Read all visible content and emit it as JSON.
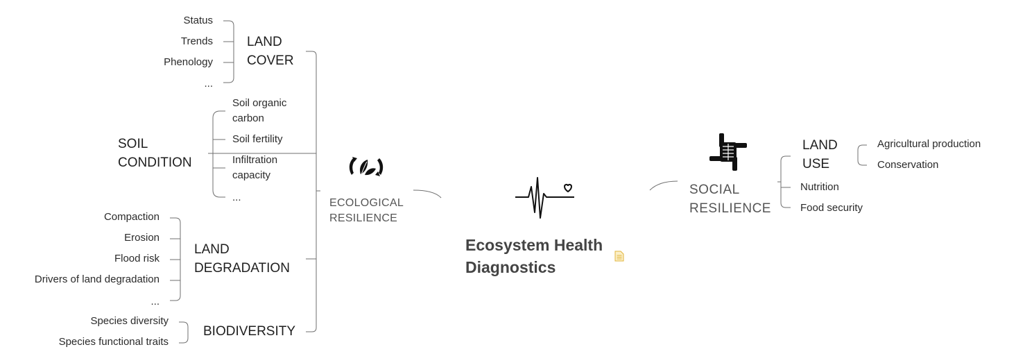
{
  "map": {
    "central": {
      "line1": "Ecosystem Health",
      "line2": "Diagnostics",
      "note_icon": "note-document-icon",
      "note_icon_color": "#e2b53c"
    },
    "ecological": {
      "line1": "ECOLOGICAL",
      "line2": "RESILIENCE",
      "icon": "leaf-recycle-icon",
      "land_cover": {
        "line1": "LAND",
        "line2": "COVER",
        "items": [
          "Status",
          "Trends",
          "Phenology",
          "..."
        ]
      },
      "soil": {
        "line1": "SOIL",
        "line2": "CONDITION",
        "items": {
          "soc1": "Soil organic",
          "soc2": "carbon",
          "fertility": "Soil fertility",
          "infil1": "Infiltration",
          "infil2": "capacity",
          "more": "..."
        }
      },
      "degradation": {
        "line1": "LAND",
        "line2": "DEGRADATION",
        "items": [
          "Compaction",
          "Erosion",
          "Flood risk",
          "Drivers of land degradation",
          "..."
        ]
      },
      "biodiversity": {
        "label": "BIODIVERSITY",
        "items": [
          "Species diversity",
          "Species functional traits"
        ]
      }
    },
    "social": {
      "line1": "SOCIAL",
      "line2": "RESILIENCE",
      "icon": "hands-together-icon",
      "land_use": {
        "line1": "LAND",
        "line2": "USE",
        "items": [
          "Agricultural production",
          "Conservation"
        ]
      },
      "nutrition": "Nutrition",
      "food_security": "Food security"
    },
    "heartbeat_icon": "heartbeat-icon"
  }
}
